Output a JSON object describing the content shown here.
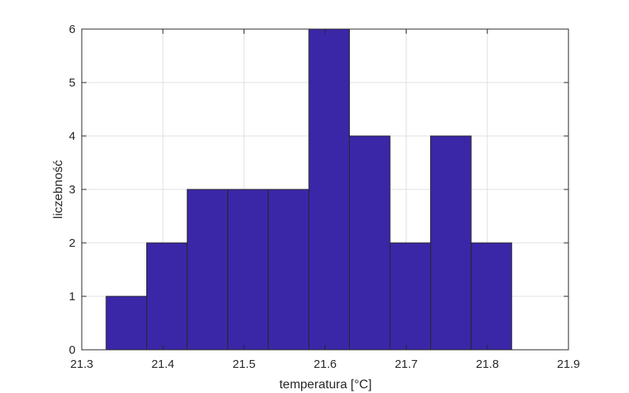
{
  "chart_data": {
    "type": "bar",
    "subtype": "histogram",
    "title": "",
    "xlabel": "temperatura [°C]",
    "ylabel": "liczebność",
    "xlim": [
      21.3,
      21.9
    ],
    "ylim": [
      0,
      6
    ],
    "xticks": [
      21.3,
      21.4,
      21.5,
      21.6,
      21.7,
      21.8,
      21.9
    ],
    "xtick_labels": [
      "21.3",
      "21.4",
      "21.5",
      "21.6",
      "21.7",
      "21.8",
      "21.9"
    ],
    "yticks": [
      0,
      1,
      2,
      3,
      4,
      5,
      6
    ],
    "ytick_labels": [
      "0",
      "1",
      "2",
      "3",
      "4",
      "5",
      "6"
    ],
    "bin_edges": [
      21.33,
      21.38,
      21.43,
      21.48,
      21.53,
      21.58,
      21.63,
      21.68,
      21.73,
      21.78,
      21.83
    ],
    "values": [
      1,
      2,
      3,
      3,
      3,
      6,
      4,
      2,
      4,
      2
    ],
    "grid": true,
    "bar_color": "#3A27A8",
    "bar_edge_color": "#262626",
    "grid_color": "#DFDFDF",
    "axis_color": "#262626"
  }
}
